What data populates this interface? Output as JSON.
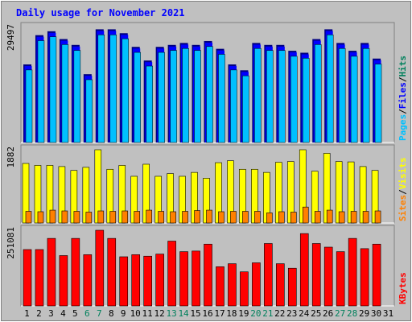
{
  "colors": {
    "background": "#c0c0c0",
    "title": "#0000ff",
    "hits": "#00805c",
    "files": "#0000ff",
    "pages": "#00c0ff",
    "visits": "#ffff00",
    "sites": "#ff8000",
    "kbytes": "#ff0000",
    "weekend_label": "#00805c",
    "weekday_label": "#000000"
  },
  "chart_data": {
    "type": "bar",
    "title": "Daily usage for November 2021",
    "days": [
      "1",
      "2",
      "3",
      "4",
      "5",
      "6",
      "7",
      "8",
      "9",
      "10",
      "11",
      "12",
      "13",
      "14",
      "15",
      "16",
      "17",
      "18",
      "19",
      "20",
      "21",
      "22",
      "23",
      "24",
      "25",
      "26",
      "27",
      "28",
      "29",
      "30",
      "31"
    ],
    "weekend_days": [
      "6",
      "7",
      "13",
      "14",
      "20",
      "21",
      "27",
      "28"
    ],
    "panels": [
      {
        "name": "hits-files-pages",
        "max_label": "29497",
        "max": 29497,
        "legend": [
          "Pages",
          "/",
          "Files",
          "/",
          "Hits"
        ],
        "series": [
          {
            "name": "Hits",
            "values": [
              20000,
              27500,
              28500,
              26500,
              25000,
              17500,
              29000,
              29000,
              28000,
              24500,
              21000,
              24500,
              25000,
              25500,
              25000,
              26000,
              24000,
              20000,
              18500,
              25500,
              25000,
              25000,
              23500,
              23000,
              26500,
              29000,
              25500,
              23500,
              25500,
              21500,
              0
            ]
          },
          {
            "name": "Files",
            "values": [
              20000,
              27500,
              28500,
              26500,
              25000,
              17500,
              29000,
              29000,
              28000,
              24500,
              21000,
              24500,
              25000,
              25500,
              25000,
              26000,
              24000,
              20000,
              18500,
              25500,
              25000,
              25000,
              23500,
              23000,
              26500,
              29000,
              25500,
              23500,
              25500,
              21500,
              0
            ]
          },
          {
            "name": "Pages",
            "values": [
              19000,
              26500,
              27500,
              25500,
              24000,
              16500,
              28000,
              28000,
              27000,
              23500,
              20000,
              23500,
              24000,
              24500,
              24000,
              25000,
              23000,
              19000,
              17500,
              24500,
              24000,
              24000,
              22500,
              22000,
              25500,
              28000,
              24500,
              22500,
              24500,
              20500,
              0
            ]
          }
        ]
      },
      {
        "name": "visits-sites",
        "max_label": "1882",
        "max": 1882,
        "legend": [
          "Sites",
          "/",
          "Visits"
        ],
        "series": [
          {
            "name": "Visits",
            "values": [
              1530,
              1480,
              1480,
              1450,
              1350,
              1430,
              1882,
              1380,
              1480,
              1200,
              1510,
              1200,
              1270,
              1200,
              1300,
              1150,
              1550,
              1600,
              1380,
              1380,
              1300,
              1560,
              1580,
              1882,
              1330,
              1790,
              1580,
              1570,
              1450,
              1350,
              0
            ]
          },
          {
            "name": "Sites",
            "values": [
              300,
              290,
              330,
              310,
              300,
              280,
              310,
              300,
              310,
              300,
              330,
              300,
              290,
              300,
              320,
              330,
              290,
              300,
              300,
              300,
              260,
              290,
              280,
              410,
              300,
              330,
              290,
              300,
              300,
              310,
              0
            ]
          }
        ]
      },
      {
        "name": "kbytes",
        "max_label": "251081",
        "max": 251081,
        "legend": [
          "KBytes"
        ],
        "series": [
          {
            "name": "KBytes",
            "values": [
              187000,
              187000,
              224000,
              167000,
              224000,
              170000,
              251081,
              224000,
              163000,
              170000,
              165000,
              172000,
              215000,
              180000,
              182000,
              205000,
              130000,
              140000,
              113000,
              143000,
              207000,
              140000,
              125000,
              240000,
              207000,
              195000,
              180000,
              224000,
              190000,
              205000,
              0
            ]
          }
        ]
      }
    ]
  }
}
